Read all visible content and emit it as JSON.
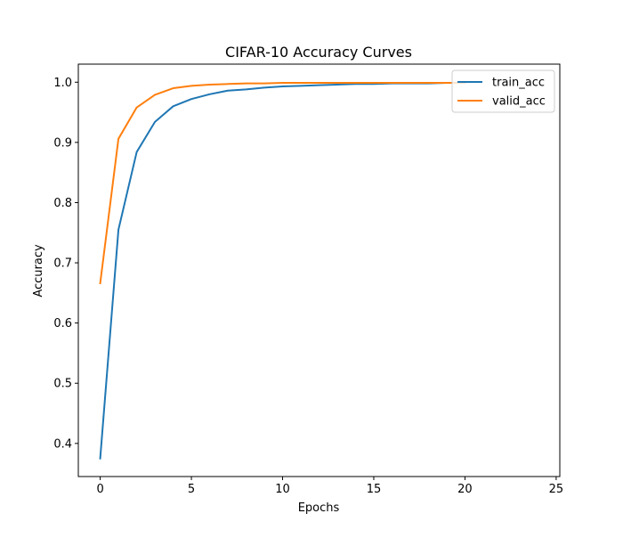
{
  "chart_data": {
    "type": "line",
    "title": "CIFAR-10 Accuracy Curves",
    "xlabel": "Epochs",
    "ylabel": "Accuracy",
    "xlim": [
      -1.2,
      25.2
    ],
    "ylim": [
      0.345,
      1.03
    ],
    "xticks": [
      0,
      5,
      10,
      15,
      20,
      25
    ],
    "yticks": [
      0.4,
      0.5,
      0.6,
      0.7,
      0.8,
      0.9,
      1.0
    ],
    "xtick_labels": [
      "0",
      "5",
      "10",
      "15",
      "20",
      "25"
    ],
    "ytick_labels": [
      "0.4",
      "0.5",
      "0.6",
      "0.7",
      "0.8",
      "0.9",
      "1.0"
    ],
    "grid": false,
    "legend": {
      "position": "top-right"
    },
    "x": [
      0,
      1,
      2,
      3,
      4,
      5,
      6,
      7,
      8,
      9,
      10,
      11,
      12,
      13,
      14,
      15,
      16,
      17,
      18,
      19,
      20
    ],
    "series": [
      {
        "name": "train_acc",
        "color": "#1f77b4",
        "values": [
          0.375,
          0.755,
          0.884,
          0.934,
          0.96,
          0.972,
          0.98,
          0.986,
          0.988,
          0.991,
          0.993,
          0.994,
          0.995,
          0.996,
          0.997,
          0.997,
          0.998,
          0.998,
          0.998,
          0.999,
          0.999
        ]
      },
      {
        "name": "valid_acc",
        "color": "#ff7f0e",
        "values": [
          0.666,
          0.906,
          0.958,
          0.979,
          0.99,
          0.994,
          0.996,
          0.997,
          0.998,
          0.998,
          0.999,
          0.999,
          0.999,
          0.999,
          0.999,
          0.999,
          0.999,
          0.999,
          0.999,
          0.999,
          0.999
        ]
      }
    ]
  }
}
